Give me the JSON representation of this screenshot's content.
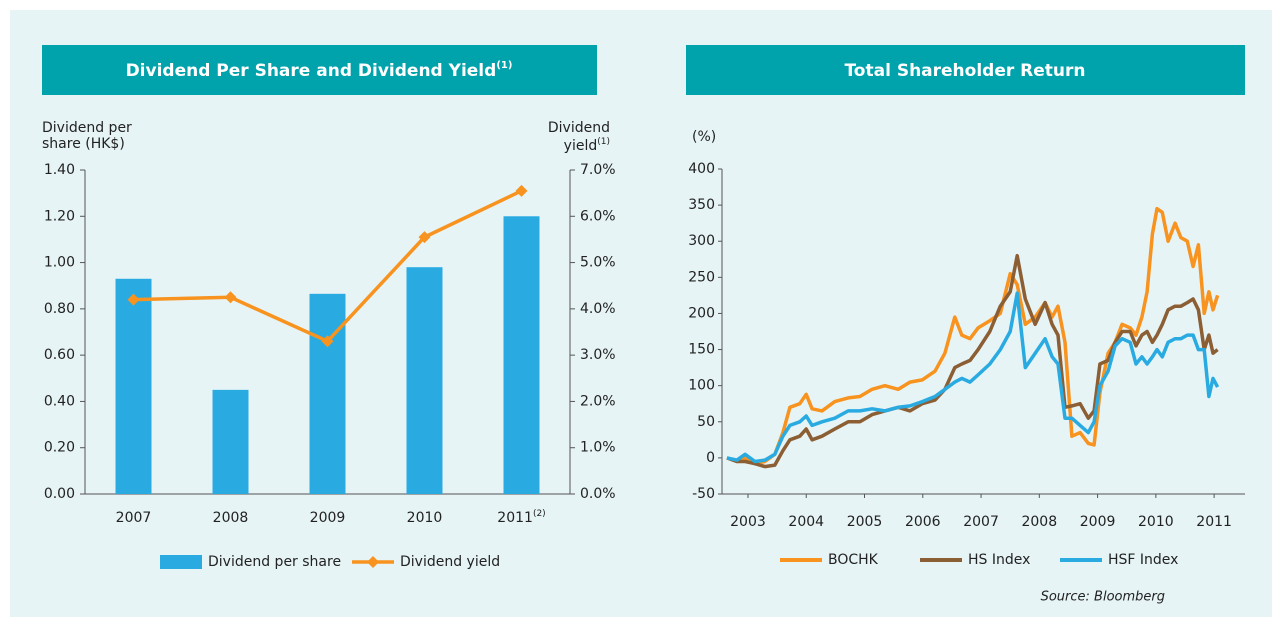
{
  "chart_data": [
    {
      "type": "combo",
      "title": "Dividend Per Share and Dividend Yield",
      "title_note": "(1)",
      "ylabel": [
        "Dividend per",
        "share (HK$)"
      ],
      "y2label": [
        "Dividend",
        "yield"
      ],
      "y2label_note": "(1)",
      "categories": [
        "2007",
        "2008",
        "2009",
        "2010",
        "2011"
      ],
      "category_notes": {
        "4": "(2)"
      },
      "series": [
        {
          "name": "Dividend per share",
          "color": "#29abe2",
          "values": [
            0.93,
            0.45,
            0.865,
            0.98,
            1.2
          ]
        },
        {
          "name": "Dividend yield",
          "color": "#f7931e",
          "axis": "y2",
          "marker": "diamond",
          "values": [
            4.2,
            4.25,
            3.3,
            5.55,
            6.55
          ]
        }
      ],
      "ylim": [
        0,
        1.4
      ],
      "yticks": [
        {
          "value": 0,
          "label": "0.00"
        },
        {
          "value": 0.2,
          "label": "0.20"
        },
        {
          "value": 0.4,
          "label": "0.40"
        },
        {
          "value": 0.6,
          "label": "0.60"
        },
        {
          "value": 0.8,
          "label": "0.80"
        },
        {
          "value": 1.0,
          "label": "1.00"
        },
        {
          "value": 1.2,
          "label": "1.20"
        },
        {
          "value": 1.4,
          "label": "1.40"
        }
      ],
      "y2lim": [
        0,
        7
      ],
      "y2ticks": [
        {
          "value": 0,
          "label": "0.0%"
        },
        {
          "value": 1,
          "label": "1.0%"
        },
        {
          "value": 2,
          "label": "2.0%"
        },
        {
          "value": 3,
          "label": "3.0%"
        },
        {
          "value": 4,
          "label": "4.0%"
        },
        {
          "value": 5,
          "label": "5.0%"
        },
        {
          "value": 6,
          "label": "6.0%"
        },
        {
          "value": 7,
          "label": "7.0%"
        }
      ],
      "grid": false,
      "legend": "bottom"
    },
    {
      "type": "line",
      "title": "Total Shareholder Return",
      "ylabel": "(%)",
      "source": "Source: Bloomberg",
      "x": [
        2002.64,
        2002.81,
        2002.95,
        2003.12,
        2003.29,
        2003.46,
        2003.6,
        2003.72,
        2003.89,
        2004.0,
        2004.1,
        2004.27,
        2004.49,
        2004.72,
        2004.92,
        2005.13,
        2005.35,
        2005.58,
        2005.78,
        2005.99,
        2006.21,
        2006.38,
        2006.55,
        2006.67,
        2006.81,
        2006.95,
        2007.15,
        2007.33,
        2007.5,
        2007.62,
        2007.76,
        2007.93,
        2008.1,
        2008.22,
        2008.32,
        2008.44,
        2008.56,
        2008.7,
        2008.84,
        2008.94,
        2009.04,
        2009.18,
        2009.3,
        2009.42,
        2009.56,
        2009.66,
        2009.76,
        2009.85,
        2009.94,
        2010.02,
        2010.11,
        2010.21,
        2010.33,
        2010.43,
        2010.54,
        2010.64,
        2010.73,
        2010.83,
        2010.91,
        2010.98,
        2011.06
      ],
      "series": [
        {
          "name": "BOCHK",
          "color": "#f7931e",
          "values": [
            0,
            -5,
            0,
            -8,
            -5,
            5,
            35,
            70,
            75,
            88,
            68,
            65,
            78,
            83,
            85,
            95,
            100,
            95,
            105,
            108,
            120,
            145,
            195,
            170,
            165,
            180,
            190,
            200,
            255,
            240,
            185,
            195,
            215,
            195,
            210,
            160,
            30,
            35,
            20,
            18,
            90,
            145,
            160,
            185,
            180,
            170,
            195,
            230,
            310,
            345,
            340,
            300,
            325,
            305,
            300,
            265,
            295,
            200,
            230,
            205,
            225
          ]
        },
        {
          "name": "HS Index",
          "color": "#8b5e34",
          "values": [
            0,
            -5,
            -5,
            -8,
            -12,
            -10,
            10,
            25,
            30,
            40,
            25,
            30,
            40,
            50,
            50,
            60,
            65,
            70,
            65,
            75,
            80,
            95,
            125,
            130,
            135,
            150,
            175,
            210,
            230,
            280,
            220,
            185,
            215,
            185,
            170,
            70,
            72,
            75,
            55,
            65,
            130,
            135,
            160,
            175,
            175,
            155,
            170,
            175,
            160,
            170,
            185,
            205,
            210,
            210,
            215,
            220,
            205,
            150,
            170,
            145,
            150
          ]
        },
        {
          "name": "HSF Index",
          "color": "#29abe2",
          "values": [
            0,
            -3,
            5,
            -5,
            -3,
            5,
            30,
            45,
            50,
            58,
            45,
            50,
            55,
            65,
            65,
            68,
            65,
            70,
            72,
            78,
            85,
            95,
            105,
            110,
            105,
            115,
            130,
            150,
            175,
            228,
            125,
            145,
            165,
            140,
            130,
            55,
            55,
            45,
            35,
            50,
            100,
            120,
            155,
            165,
            160,
            130,
            140,
            130,
            140,
            150,
            140,
            160,
            165,
            165,
            170,
            170,
            150,
            150,
            85,
            110,
            98
          ]
        }
      ],
      "xlim": [
        2002.64,
        2011.53
      ],
      "xticks": [
        2003,
        2004,
        2005,
        2006,
        2007,
        2008,
        2009,
        2010,
        2011
      ],
      "ylim": [
        -50,
        400
      ],
      "yticks": [
        -50,
        0,
        50,
        100,
        150,
        200,
        250,
        300,
        350,
        400
      ],
      "grid": false,
      "legend": "bottom"
    }
  ]
}
